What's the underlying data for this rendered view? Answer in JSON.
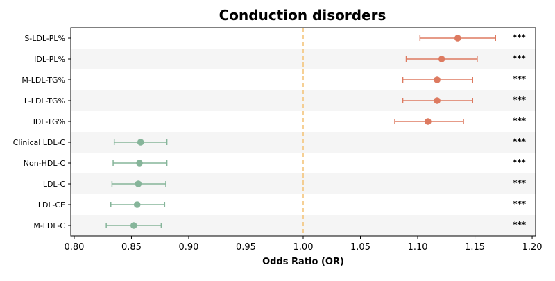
{
  "chart_data": {
    "type": "scatter",
    "title": "Conduction disorders",
    "xlabel": "Odds Ratio (OR)",
    "ylabel": "",
    "xlim": [
      0.797,
      1.203
    ],
    "xticks": [
      "0.80",
      "0.85",
      "0.90",
      "0.95",
      "1.00",
      "1.05",
      "1.10",
      "1.15",
      "1.20"
    ],
    "xtick_values": [
      0.8,
      0.85,
      0.9,
      0.95,
      1.0,
      1.05,
      1.1,
      1.15,
      1.2
    ],
    "reference_line": 1.0,
    "grid": false,
    "colors": {
      "positive": "#dd7a60",
      "negative": "#86b59a",
      "reference": "#f4c47b",
      "band": "#f5f5f5"
    },
    "categories": [
      "S-LDL-PL%",
      "IDL-PL%",
      "M-LDL-TG%",
      "L-LDL-TG%",
      "IDL-TG%",
      "Clinical LDL-C",
      "Non-HDL-C",
      "LDL-C",
      "LDL-CE",
      "M-LDL-C"
    ],
    "series": [
      {
        "or": [
          1.135,
          1.121,
          1.117,
          1.117,
          1.109,
          0.858,
          0.857,
          0.856,
          0.855,
          0.852
        ],
        "lower": [
          1.102,
          1.09,
          1.087,
          1.087,
          1.08,
          0.835,
          0.834,
          0.833,
          0.832,
          0.828
        ],
        "upper": [
          1.168,
          1.152,
          1.148,
          1.148,
          1.14,
          0.881,
          0.881,
          0.88,
          0.879,
          0.876
        ],
        "significance": [
          "***",
          "***",
          "***",
          "***",
          "***",
          "***",
          "***",
          "***",
          "***",
          "***"
        ]
      }
    ]
  }
}
